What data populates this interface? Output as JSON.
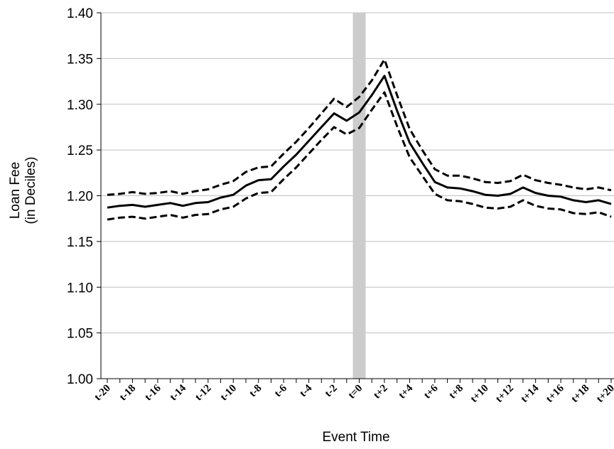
{
  "chart_data": {
    "type": "line",
    "title": "",
    "xlabel": "Event Time",
    "ylabel_lines": [
      "Loan Fee",
      "(in Deciles)"
    ],
    "ylim": [
      1.0,
      1.4
    ],
    "yticks": [
      "1.00",
      "1.05",
      "1.10",
      "1.15",
      "1.20",
      "1.25",
      "1.30",
      "1.35",
      "1.40"
    ],
    "ytick_values": [
      1.0,
      1.05,
      1.1,
      1.15,
      1.2,
      1.25,
      1.3,
      1.35,
      1.4
    ],
    "x": [
      -20,
      -19,
      -18,
      -17,
      -16,
      -15,
      -14,
      -13,
      -12,
      -11,
      -10,
      -9,
      -8,
      -7,
      -6,
      -5,
      -4,
      -3,
      -2,
      -1,
      0,
      1,
      2,
      3,
      4,
      5,
      6,
      7,
      8,
      9,
      10,
      11,
      12,
      13,
      14,
      15,
      16,
      17,
      18,
      19,
      20
    ],
    "xticks": [
      "t-20",
      "t-18",
      "t-16",
      "t-14",
      "t-12",
      "t-10",
      "t-8",
      "t-6",
      "t-4",
      "t-2",
      "t=0",
      "t+2",
      "t+4",
      "t+6",
      "t+8",
      "t+10",
      "t+12",
      "t+14",
      "t+16",
      "t+18",
      "t+20"
    ],
    "xtick_values": [
      -20,
      -18,
      -16,
      -14,
      -12,
      -10,
      -8,
      -6,
      -4,
      -2,
      0,
      2,
      4,
      6,
      8,
      10,
      12,
      14,
      16,
      18,
      20
    ],
    "grid": "horizontal",
    "highlight_band": {
      "x": 0
    },
    "colors": {
      "mean": "#000000",
      "ci": "#000000",
      "band": "#cccccc",
      "grid": "#bfbfbf"
    },
    "series": [
      {
        "style": "solid",
        "values": [
          1.187,
          1.189,
          1.19,
          1.188,
          1.19,
          1.192,
          1.189,
          1.192,
          1.193,
          1.198,
          1.201,
          1.211,
          1.217,
          1.218,
          1.232,
          1.245,
          1.26,
          1.275,
          1.29,
          1.282,
          1.291,
          1.31,
          1.331,
          1.293,
          1.258,
          1.236,
          1.215,
          1.209,
          1.208,
          1.205,
          1.201,
          1.2,
          1.202,
          1.209,
          1.203,
          1.2,
          1.199,
          1.195,
          1.193,
          1.195,
          1.191
        ]
      },
      {
        "style": "dashed",
        "values": [
          1.201,
          1.202,
          1.204,
          1.202,
          1.203,
          1.205,
          1.202,
          1.205,
          1.207,
          1.212,
          1.216,
          1.226,
          1.231,
          1.232,
          1.246,
          1.259,
          1.274,
          1.29,
          1.306,
          1.297,
          1.308,
          1.326,
          1.349,
          1.31,
          1.273,
          1.25,
          1.229,
          1.222,
          1.222,
          1.219,
          1.215,
          1.214,
          1.216,
          1.223,
          1.217,
          1.214,
          1.212,
          1.209,
          1.207,
          1.209,
          1.206
        ]
      },
      {
        "style": "dashed",
        "values": [
          1.174,
          1.176,
          1.177,
          1.175,
          1.177,
          1.179,
          1.176,
          1.179,
          1.18,
          1.185,
          1.188,
          1.197,
          1.203,
          1.204,
          1.218,
          1.231,
          1.246,
          1.261,
          1.275,
          1.267,
          1.274,
          1.294,
          1.313,
          1.276,
          1.242,
          1.222,
          1.202,
          1.195,
          1.194,
          1.191,
          1.187,
          1.186,
          1.188,
          1.195,
          1.189,
          1.186,
          1.185,
          1.181,
          1.18,
          1.182,
          1.177
        ]
      }
    ]
  }
}
